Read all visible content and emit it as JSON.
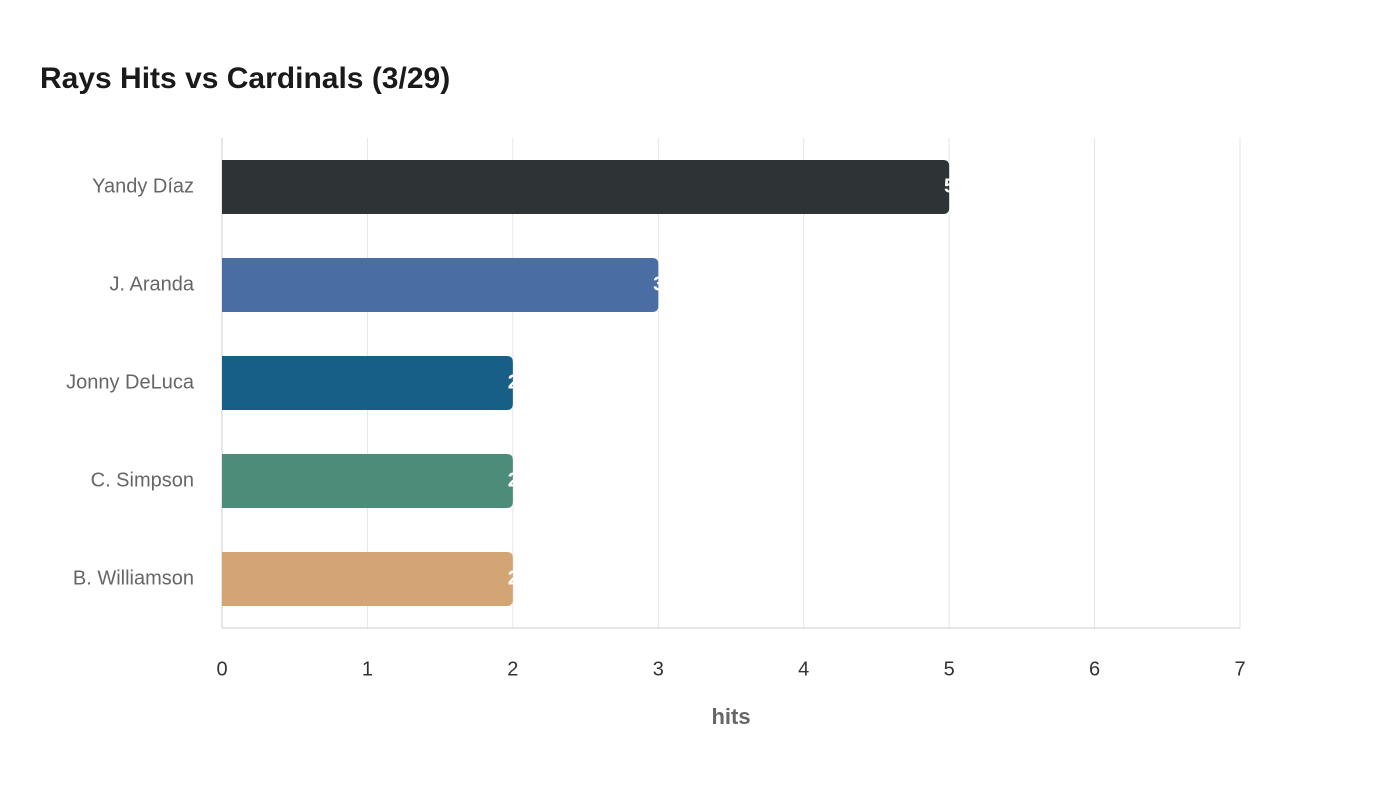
{
  "chart_data": {
    "type": "barh",
    "title": "Rays Hits vs Cardinals (3/29)",
    "categories": [
      "Yandy Díaz",
      "J. Aranda",
      "Jonny DeLuca",
      "C. Simpson",
      "B. Williamson"
    ],
    "values": [
      5,
      3,
      2,
      2,
      2
    ],
    "colors": [
      "#2e3336",
      "#4a6ea4",
      "#185f88",
      "#4e8c7a",
      "#d3a575"
    ],
    "x_label": "hits",
    "xlim": [
      0,
      7
    ],
    "xticks": [
      0,
      1,
      2,
      3,
      4,
      5,
      6,
      7
    ],
    "grid": true
  }
}
